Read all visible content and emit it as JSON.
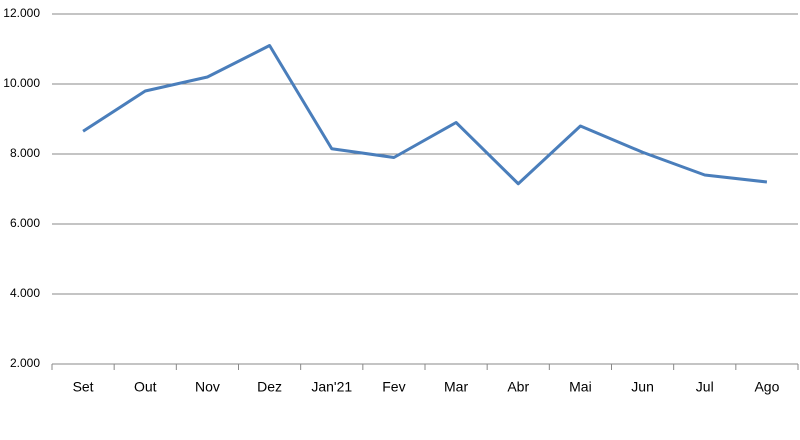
{
  "chart_data": {
    "type": "line",
    "categories": [
      "Set",
      "Out",
      "Nov",
      "Dez",
      "Jan'21",
      "Fev",
      "Mar",
      "Abr",
      "Mai",
      "Jun",
      "Jul",
      "Ago"
    ],
    "series": [
      {
        "color": "#4a7ebb",
        "values": [
          8650,
          9800,
          10200,
          11100,
          8150,
          7900,
          8900,
          7150,
          8800,
          8050,
          7400,
          7200
        ]
      }
    ],
    "ylim": [
      2000,
      12000
    ],
    "yticks": [
      {
        "value": 2000,
        "label": "2.000"
      },
      {
        "value": 4000,
        "label": "4.000"
      },
      {
        "value": 6000,
        "label": "6.000"
      },
      {
        "value": 8000,
        "label": "8.000"
      },
      {
        "value": 10000,
        "label": "10.000"
      },
      {
        "value": 12000,
        "label": "12.000"
      }
    ],
    "grid": true
  }
}
